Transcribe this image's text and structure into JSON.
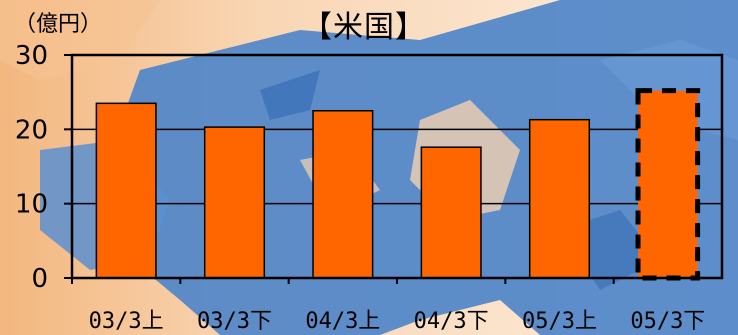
{
  "chart_data": {
    "type": "bar",
    "title": "【米国】",
    "unit_label": "（億円）",
    "categories": [
      "03/3上",
      "03/3下",
      "04/3上",
      "04/3下",
      "05/3上",
      "05/3下"
    ],
    "values": [
      23.5,
      20.3,
      22.5,
      17.6,
      21.3,
      25.2
    ],
    "projected": [
      false,
      false,
      false,
      false,
      false,
      true
    ],
    "ylim": [
      0,
      30
    ],
    "yticks": [
      0,
      10,
      20,
      30
    ],
    "bar_color": "#ff6600",
    "grid": true,
    "legend": "none"
  },
  "colors": {
    "background_warm": "#f7c79a",
    "background_cool": "#4a7fc4",
    "bar": "#ff6600",
    "axis": "#000000"
  }
}
